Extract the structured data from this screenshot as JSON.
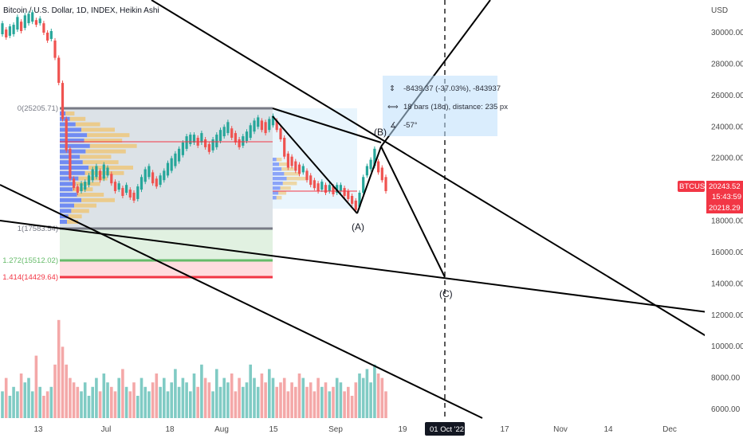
{
  "chart_data": {
    "type": "candlestick",
    "title": "Bitcoin / U.S. Dollar, 1D, INDEX, Heikin Ashi",
    "price_axis": {
      "unit": "USD",
      "ticks": [
        "30000.00",
        "28000.00",
        "26000.00",
        "24000.00",
        "22000.00",
        "18000.00",
        "16000.00",
        "14000.00",
        "12000.00",
        "10000.00",
        "8000.00",
        "6000.00"
      ],
      "range": [
        5200,
        31400
      ]
    },
    "time_axis": {
      "ticks": [
        "13",
        "Jul",
        "18",
        "Aug",
        "15",
        "Sep",
        "19",
        "17",
        "Nov",
        "14",
        "Dec"
      ],
      "highlight": "01 Oct '22"
    },
    "price_tags": {
      "symbol": "BTCUSD",
      "price": "20243.52",
      "countdown": "15:43:59",
      "low_price": "20218.29"
    },
    "fib_levels": [
      {
        "label": "0(25205.71)",
        "value": 25205.71,
        "color": "#787b86"
      },
      {
        "label": "1(17583.54)",
        "value": 17583.54,
        "color": "#787b86"
      },
      {
        "label": "1.272(15512.02)",
        "value": 15512.02,
        "color": "#66bb6a"
      },
      {
        "label": "1.414(14429.64)",
        "value": 14429.64,
        "color": "#f23645"
      }
    ],
    "wave_labels": [
      "(A)",
      "(B)",
      "(C)"
    ],
    "measure_info": {
      "price_change": "-8439.37 (-37.03%), -843937",
      "bars": "18 bars (18d), distance: 235 px",
      "angle": "-57°"
    },
    "ha_bars": [
      [
        29900,
        30600
      ],
      [
        29700,
        30200
      ],
      [
        29800,
        30400
      ],
      [
        29900,
        30500
      ],
      [
        30200,
        31000
      ],
      [
        30100,
        30700
      ],
      [
        30300,
        31100
      ],
      [
        30600,
        31200
      ],
      [
        30700,
        31300
      ],
      [
        30500,
        30800
      ],
      [
        30600,
        30900
      ],
      [
        30000,
        30600
      ],
      [
        29500,
        30000
      ],
      [
        29600,
        30100
      ],
      [
        28400,
        29500
      ],
      [
        26800,
        28400
      ],
      [
        24500,
        26800
      ],
      [
        22500,
        24500
      ],
      [
        20700,
        22600
      ],
      [
        20100,
        20700
      ],
      [
        19800,
        20200
      ],
      [
        19900,
        20400
      ],
      [
        20000,
        20500
      ],
      [
        20300,
        20900
      ],
      [
        20600,
        21300
      ],
      [
        20800,
        21500
      ],
      [
        20600,
        21200
      ],
      [
        20700,
        21600
      ],
      [
        20900,
        21400
      ],
      [
        20400,
        21000
      ],
      [
        19900,
        20500
      ],
      [
        20000,
        20400
      ],
      [
        19600,
        20100
      ],
      [
        19800,
        20300
      ],
      [
        19500,
        20000
      ],
      [
        19300,
        19800
      ],
      [
        19400,
        20200
      ],
      [
        20000,
        20800
      ],
      [
        20500,
        21300
      ],
      [
        20800,
        21500
      ],
      [
        20400,
        21100
      ],
      [
        20200,
        20700
      ],
      [
        20300,
        20900
      ],
      [
        20600,
        21200
      ],
      [
        20900,
        21700
      ],
      [
        21200,
        22000
      ],
      [
        21500,
        22300
      ],
      [
        21800,
        22600
      ],
      [
        22200,
        23000
      ],
      [
        22600,
        23400
      ],
      [
        22900,
        23500
      ],
      [
        23000,
        23500
      ],
      [
        22800,
        23300
      ],
      [
        23000,
        23600
      ],
      [
        22700,
        23200
      ],
      [
        22400,
        22900
      ],
      [
        22500,
        23200
      ],
      [
        22700,
        23500
      ],
      [
        23100,
        23800
      ],
      [
        23400,
        24000
      ],
      [
        23600,
        24300
      ],
      [
        23300,
        23900
      ],
      [
        23000,
        23600
      ],
      [
        22700,
        23200
      ],
      [
        22800,
        23400
      ],
      [
        23100,
        23700
      ],
      [
        23300,
        24100
      ],
      [
        23700,
        24400
      ],
      [
        24000,
        24600
      ],
      [
        23800,
        24400
      ],
      [
        23600,
        24300
      ],
      [
        23800,
        24500
      ],
      [
        24100,
        24700
      ],
      [
        23800,
        24400
      ],
      [
        23200,
        23900
      ],
      [
        22100,
        23300
      ],
      [
        21400,
        22300
      ],
      [
        21500,
        22100
      ],
      [
        21200,
        21800
      ],
      [
        21000,
        21600
      ],
      [
        21100,
        21500
      ],
      [
        20600,
        21200
      ],
      [
        20300,
        20900
      ],
      [
        20100,
        20600
      ],
      [
        19900,
        20400
      ],
      [
        20000,
        20500
      ],
      [
        19800,
        20300
      ],
      [
        19900,
        20300
      ],
      [
        19700,
        20200
      ],
      [
        19800,
        20300
      ],
      [
        19900,
        20300
      ],
      [
        19600,
        20100
      ],
      [
        19400,
        19900
      ],
      [
        19100,
        19600
      ],
      [
        18700,
        19300
      ],
      [
        18900,
        19800
      ],
      [
        19800,
        20800
      ],
      [
        20900,
        21500
      ],
      [
        21300,
        21900
      ],
      [
        21500,
        22600
      ],
      [
        21100,
        21800
      ],
      [
        20600,
        21400
      ],
      [
        19900,
        20800
      ]
    ],
    "volume": [
      6,
      9,
      5,
      7,
      6,
      10,
      8,
      9,
      6,
      14,
      7,
      5,
      6,
      7,
      12,
      22,
      16,
      12,
      9,
      8,
      7,
      6,
      8,
      5,
      7,
      9,
      6,
      10,
      8,
      7,
      6,
      9,
      11,
      7,
      6,
      8,
      5,
      9,
      7,
      6,
      8,
      10,
      7,
      9,
      6,
      8,
      11,
      7,
      9,
      8,
      6,
      10,
      7,
      12,
      9,
      8,
      6,
      11,
      7,
      9,
      8,
      10,
      6,
      9,
      7,
      8,
      12,
      9,
      7,
      10,
      8,
      11,
      9,
      7,
      8,
      9,
      6,
      8,
      7,
      10,
      9,
      7,
      8,
      6,
      9,
      7,
      8,
      6,
      7,
      9,
      8,
      6,
      7,
      5,
      8,
      10,
      9,
      11,
      8,
      12,
      10,
      9,
      6
    ],
    "volume_colors": "up=#26a69a, down=#ef5350"
  }
}
